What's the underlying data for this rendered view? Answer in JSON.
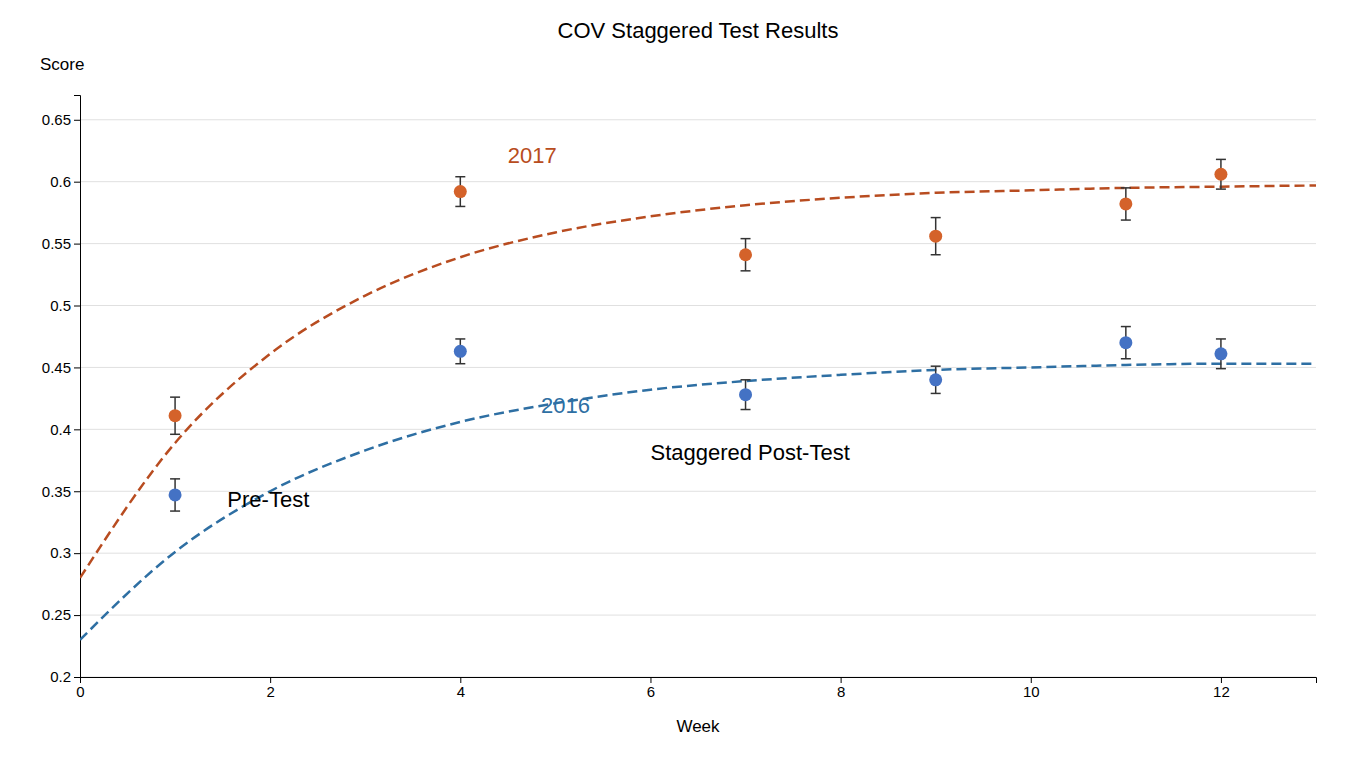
{
  "chart_data": {
    "type": "scatter",
    "title": "COV Staggered Test Results",
    "x_label": "Week",
    "y_label": "Score",
    "xlim": [
      0,
      13
    ],
    "ylim": [
      0.2,
      0.67
    ],
    "xticks": [
      0,
      2,
      4,
      6,
      8,
      10,
      12
    ],
    "yticks": [
      0.2,
      0.25,
      0.3,
      0.35,
      0.4,
      0.45,
      0.5,
      0.55,
      0.6,
      0.65
    ],
    "grid": "y",
    "series": [
      {
        "type": "line",
        "line_style": "dashed",
        "color": "#b84c20",
        "x": [
          0,
          1,
          2,
          3,
          4,
          5,
          6,
          7,
          8,
          9,
          10,
          11,
          12,
          13
        ],
        "values": [
          0.28,
          0.389,
          0.461,
          0.508,
          0.539,
          0.559,
          0.572,
          0.581,
          0.587,
          0.591,
          0.593,
          0.595,
          0.596,
          0.597
        ]
      },
      {
        "type": "line",
        "line_style": "dashed",
        "color": "#2e6fa3",
        "x": [
          0,
          1,
          2,
          3,
          4,
          5,
          6,
          7,
          8,
          9,
          10,
          11,
          12,
          13
        ],
        "values": [
          0.23,
          0.301,
          0.35,
          0.383,
          0.406,
          0.421,
          0.432,
          0.439,
          0.444,
          0.448,
          0.45,
          0.452,
          0.453,
          0.453
        ]
      },
      {
        "type": "scatter",
        "marker": "circle",
        "color": "#d4622a",
        "x": [
          1,
          4,
          7,
          9,
          11,
          12
        ],
        "values": [
          0.411,
          0.592,
          0.541,
          0.556,
          0.582,
          0.606
        ],
        "errors": [
          0.015,
          0.012,
          0.013,
          0.015,
          0.013,
          0.012
        ]
      },
      {
        "type": "scatter",
        "marker": "circle",
        "color": "#4472c4",
        "x": [
          1,
          4,
          7,
          9,
          11,
          12
        ],
        "values": [
          0.347,
          0.463,
          0.428,
          0.44,
          0.47,
          0.461
        ],
        "errors": [
          0.013,
          0.01,
          0.012,
          0.011,
          0.013,
          0.012
        ]
      }
    ],
    "annotations": [
      {
        "text": "2017",
        "x": 4.5,
        "y": 0.615,
        "color": "#b84c20"
      },
      {
        "text": "2016",
        "x": 4.85,
        "y": 0.413,
        "color": "#2e6fa3"
      },
      {
        "text": "Pre-Test",
        "x": 1.55,
        "y": 0.337,
        "color": "#000000"
      },
      {
        "text": "Staggered Post-Test",
        "x": 6.0,
        "y": 0.375,
        "color": "#000000"
      }
    ]
  }
}
